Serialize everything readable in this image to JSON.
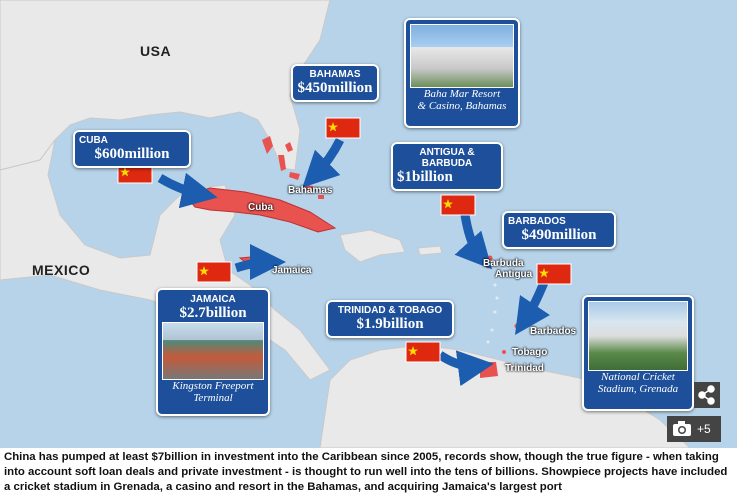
{
  "map": {
    "countries": [
      "USA",
      "MEXICO"
    ],
    "callouts": [
      {
        "title": "BAHAMAS",
        "amount": "$450million"
      },
      {
        "title": "CUBA",
        "amount": "$600million"
      },
      {
        "title": "ANTIGUA & BARBUDA",
        "amount": "$1billion"
      },
      {
        "title": "BARBADOS",
        "amount": "$490million"
      },
      {
        "title": "JAMAICA",
        "amount": "$2.7billion"
      },
      {
        "title": "TRINIDAD & TOBAGO",
        "amount": "$1.9billion"
      }
    ],
    "photos": [
      {
        "caption": [
          "Baha Mar Resort",
          "& Casino, Bahamas"
        ]
      },
      {
        "caption": [
          "Kingston Freeport",
          "Terminal"
        ]
      },
      {
        "caption": [
          "National Cricket",
          "Stadium, Grenada"
        ]
      }
    ],
    "place_labels": [
      "Bahamas",
      "Cuba",
      "Jamaica",
      "Barbuda",
      "Antigua",
      "Barbados",
      "Tobago",
      "Trinidad"
    ]
  },
  "gallery": {
    "count": "+5"
  },
  "caption": "China has pumped at least $7billion in investment into the Caribbean since 2005, records show, though the true figure - when taking into account soft loan deals and private investment - is thought to run well into the tens of billions. Showpiece projects have included a cricket stadium in Grenada, a casino and resort in the Bahamas, and acquiring Jamaica's largest port"
}
